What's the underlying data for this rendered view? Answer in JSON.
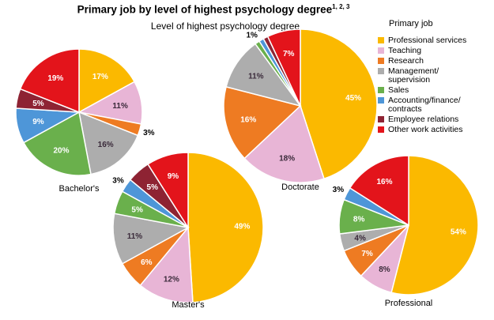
{
  "chart_data": {
    "type": "pie",
    "title": "Primary job by level of highest psychology degree",
    "title_superscript": "1, 2, 3",
    "subtitle": "Level of highest psychology degree",
    "legend_title": "Primary job",
    "legend_placement": "right",
    "categories": [
      "Professional services",
      "Teaching",
      "Research",
      "Management/\nsupervision",
      "Sales",
      "Accounting/finance/\ncontracts",
      "Employee relations",
      "Other work activities"
    ],
    "colors": [
      "#FBB900",
      "#E8B5D6",
      "#EE7B22",
      "#ADADAD",
      "#6AB04C",
      "#4E96D8",
      "#8E2333",
      "#E3141B"
    ],
    "series": [
      {
        "name": "Bachelor's",
        "values": [
          17,
          11,
          3,
          16,
          20,
          9,
          5,
          19
        ],
        "labels": [
          "17%",
          "11%",
          "3%",
          "16%",
          "20%",
          "9%",
          "5%",
          "19%"
        ]
      },
      {
        "name": "Doctorate",
        "values": [
          45,
          18,
          16,
          11,
          1,
          1,
          1,
          7
        ],
        "labels": [
          "45%",
          "18%",
          "16%",
          "11%",
          "1%",
          "",
          "",
          "7%"
        ]
      },
      {
        "name": "Master's",
        "values": [
          49,
          12,
          6,
          11,
          5,
          3,
          5,
          9
        ],
        "labels": [
          "49%",
          "12%",
          "6%",
          "11%",
          "5%",
          "3%",
          "5%",
          "9%"
        ]
      },
      {
        "name": "Professional",
        "values": [
          54,
          8,
          7,
          4,
          8,
          3,
          0,
          16
        ],
        "labels": [
          "54%",
          "8%",
          "7%",
          "4%",
          "8%",
          "3%",
          "",
          "16%"
        ]
      }
    ]
  }
}
